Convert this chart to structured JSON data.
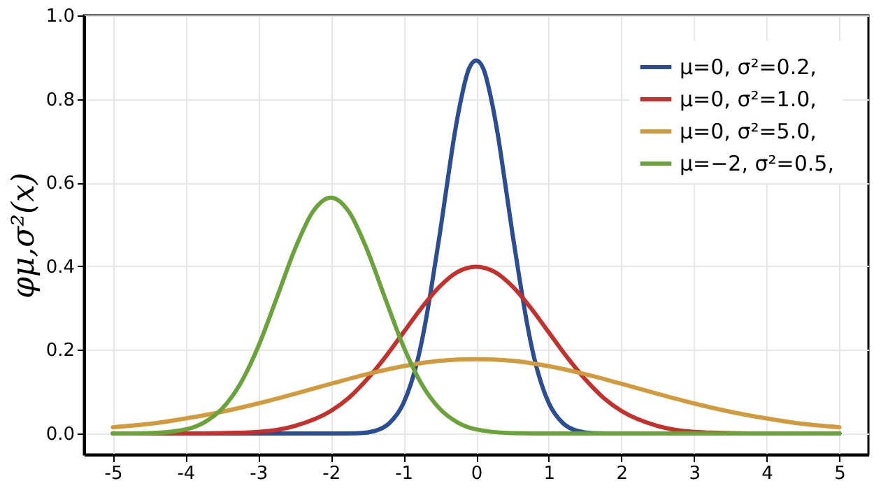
{
  "chart_data": {
    "type": "line",
    "ylabel": "φμ,σ²(x)",
    "xlim": [
      -5.4,
      5.4
    ],
    "ylim": [
      -0.05,
      1.0
    ],
    "xticks": [
      -5,
      -4,
      -3,
      -2,
      -1,
      0,
      1,
      2,
      3,
      4,
      5
    ],
    "yticks": [
      {
        "value": 0,
        "label": "0.0"
      },
      0.2,
      0.4,
      0.6,
      0.8,
      {
        "value": 1,
        "label": "1.0"
      }
    ],
    "grid": true,
    "legend": "top right",
    "line_style": "solid",
    "marker": "none",
    "series": [
      {
        "name": "μ=0,  σ²=0.2,",
        "color": "#2b4d94",
        "x": [
          -5,
          -2,
          -1.6,
          -1.4,
          -1.2,
          -1.0,
          -0.9,
          -0.8,
          -0.7,
          -0.6,
          -0.5,
          -0.4,
          -0.3,
          -0.2,
          -0.1,
          0,
          0.1,
          0.2,
          0.3,
          0.4,
          0.5,
          0.6,
          0.7,
          0.8,
          0.9,
          1.0,
          1.2,
          1.4,
          1.6,
          2,
          5
        ],
        "values": [
          0,
          0,
          0.001,
          0.006,
          0.024,
          0.073,
          0.118,
          0.18,
          0.264,
          0.367,
          0.478,
          0.597,
          0.713,
          0.806,
          0.872,
          0.892,
          0.872,
          0.806,
          0.713,
          0.597,
          0.478,
          0.367,
          0.264,
          0.18,
          0.118,
          0.073,
          0.024,
          0.006,
          0.001,
          0,
          0
        ]
      },
      {
        "name": "μ=0,  σ²=1.0,",
        "color": "#c4302b",
        "x": [
          -5,
          -4,
          -3.5,
          -3,
          -2.5,
          -2,
          -1.75,
          -1.5,
          -1.25,
          -1,
          -0.75,
          -0.5,
          -0.25,
          0,
          0.25,
          0.5,
          0.75,
          1,
          1.25,
          1.5,
          1.75,
          2,
          2.5,
          3,
          3.5,
          4,
          5
        ],
        "values": [
          0,
          0,
          0.001,
          0.004,
          0.018,
          0.054,
          0.086,
          0.13,
          0.183,
          0.242,
          0.301,
          0.352,
          0.387,
          0.399,
          0.387,
          0.352,
          0.301,
          0.242,
          0.183,
          0.13,
          0.086,
          0.054,
          0.018,
          0.004,
          0.001,
          0,
          0
        ]
      },
      {
        "name": "μ=0,  σ²=5.0,",
        "color": "#d19a3c",
        "x": [
          -5,
          -4.5,
          -4,
          -3.5,
          -3,
          -2.5,
          -2,
          -1.5,
          -1,
          -0.5,
          0,
          0.5,
          1,
          1.5,
          2,
          2.5,
          3,
          3.5,
          4,
          4.5,
          5
        ],
        "values": [
          0.015,
          0.023,
          0.036,
          0.052,
          0.072,
          0.095,
          0.119,
          0.142,
          0.161,
          0.174,
          0.178,
          0.174,
          0.161,
          0.142,
          0.119,
          0.095,
          0.072,
          0.052,
          0.036,
          0.023,
          0.015
        ]
      },
      {
        "name": "μ=−2, σ²=0.5,",
        "color": "#6aa33a",
        "x": [
          -5,
          -4.5,
          -4,
          -3.75,
          -3.5,
          -3.25,
          -3,
          -2.75,
          -2.5,
          -2.25,
          -2,
          -1.75,
          -1.5,
          -1.25,
          -1,
          -0.75,
          -0.5,
          -0.25,
          0,
          0.5,
          1,
          5
        ],
        "values": [
          0,
          0.001,
          0.01,
          0.026,
          0.059,
          0.118,
          0.208,
          0.322,
          0.439,
          0.53,
          0.564,
          0.53,
          0.439,
          0.322,
          0.208,
          0.118,
          0.059,
          0.026,
          0.01,
          0.001,
          0,
          0
        ]
      }
    ]
  }
}
